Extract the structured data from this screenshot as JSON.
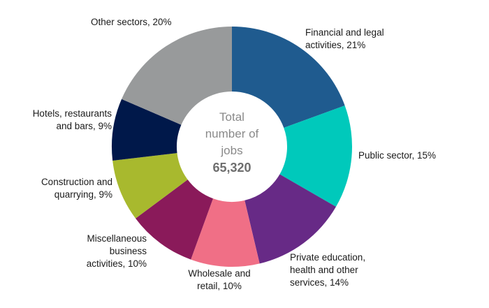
{
  "chart_data": {
    "type": "pie",
    "variant": "donut",
    "center": {
      "line1": "Total",
      "line2": "number of",
      "line3": "jobs",
      "total": "65,320"
    },
    "slices": [
      {
        "name": "Financial and legal activities",
        "label_line1": "Financial and legal",
        "label_line2": "activities, 21%",
        "label_line3": "",
        "value": 21,
        "color": "#1f5b8f"
      },
      {
        "name": "Public sector",
        "label_line1": "Public sector, 15%",
        "label_line2": "",
        "label_line3": "",
        "value": 15,
        "color": "#00c9bb"
      },
      {
        "name": "Private education, health and other services",
        "label_line1": "Private education,",
        "label_line2": "health and other",
        "label_line3": "services, 14%",
        "value": 14,
        "color": "#672a86"
      },
      {
        "name": "Wholesale and retail",
        "label_line1": "Wholesale and",
        "label_line2": "retail, 10%",
        "label_line3": "",
        "value": 10,
        "color": "#f06f86"
      },
      {
        "name": "Miscellaneous business activities",
        "label_line1": "Miscellaneous",
        "label_line2": "business",
        "label_line3": "activities, 10%",
        "value": 10,
        "color": "#8a1a5a"
      },
      {
        "name": "Construction and quarrying",
        "label_line1": "Construction and",
        "label_line2": "quarrying, 9%",
        "label_line3": "",
        "value": 9,
        "color": "#a8b92e"
      },
      {
        "name": "Hotels, restaurants and bars",
        "label_line1": "Hotels, restaurants",
        "label_line2": "and bars, 9%",
        "label_line3": "",
        "value": 9,
        "color": "#00184a"
      },
      {
        "name": "Other sectors",
        "label_line1": "Other sectors, 20%",
        "label_line2": "",
        "label_line3": "",
        "value": 20,
        "color": "#989a9b"
      }
    ]
  }
}
